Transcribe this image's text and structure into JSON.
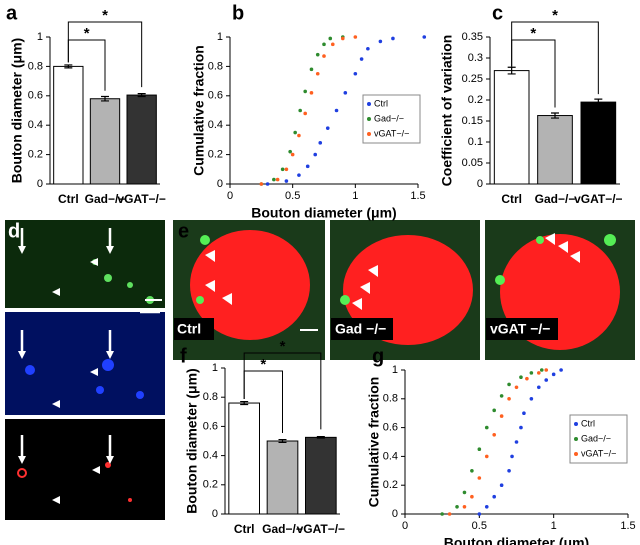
{
  "panel_labels": [
    "a",
    "b",
    "c",
    "d",
    "e",
    "f",
    "g"
  ],
  "image_labels": [
    "Ctrl",
    "Gad −/−",
    "vGAT −/−"
  ],
  "chart_data": [
    {
      "type": "bar",
      "ylabel": "Bouton diameter (μm)",
      "categories": [
        "Ctrl",
        "Gad−/−",
        "vGAT−/−"
      ],
      "values": [
        0.8,
        0.58,
        0.605
      ],
      "errors": [
        0.01,
        0.015,
        0.01
      ],
      "colors": [
        "#ffffff",
        "#b3b3b3",
        "#333333"
      ],
      "ylim": [
        0,
        1
      ],
      "yticks": [
        0,
        0.2,
        0.4,
        0.6,
        0.8,
        1
      ],
      "annotations": [
        "*",
        "*"
      ]
    },
    {
      "type": "line",
      "xlabel": "Bouton diameter (μm)",
      "ylabel": "Cumulative fraction",
      "xlim": [
        0,
        1.5
      ],
      "xticks": [
        0,
        0.5,
        1,
        1.5
      ],
      "ylim": [
        0,
        1
      ],
      "yticks": [
        0,
        0.2,
        0.4,
        0.6,
        0.8,
        1
      ],
      "series": [
        {
          "name": "Ctrl",
          "color": "#1f3fe0",
          "x": [
            0.3,
            0.45,
            0.55,
            0.62,
            0.68,
            0.72,
            0.78,
            0.85,
            0.92,
            1.0,
            1.05,
            1.1,
            1.2,
            1.3,
            1.55
          ],
          "values": [
            0,
            0.02,
            0.06,
            0.12,
            0.2,
            0.28,
            0.38,
            0.5,
            0.62,
            0.75,
            0.85,
            0.92,
            0.97,
            0.99,
            1
          ]
        },
        {
          "name": "Gad−/−",
          "color": "#2e8b2e",
          "x": [
            0.25,
            0.35,
            0.42,
            0.48,
            0.52,
            0.56,
            0.6,
            0.65,
            0.7,
            0.75,
            0.8,
            0.9
          ],
          "values": [
            0,
            0.03,
            0.1,
            0.22,
            0.35,
            0.5,
            0.63,
            0.78,
            0.88,
            0.95,
            0.99,
            1
          ]
        },
        {
          "name": "vGAT−/−",
          "color": "#ff6020",
          "x": [
            0.25,
            0.38,
            0.45,
            0.5,
            0.55,
            0.6,
            0.65,
            0.7,
            0.75,
            0.82,
            0.9,
            1.0
          ],
          "values": [
            0,
            0.03,
            0.1,
            0.2,
            0.33,
            0.48,
            0.62,
            0.75,
            0.87,
            0.95,
            0.99,
            1
          ]
        }
      ]
    },
    {
      "type": "bar",
      "ylabel": "Coefficient of variation",
      "categories": [
        "Ctrl",
        "Gad−/−",
        "vGAT−/−"
      ],
      "values": [
        0.27,
        0.163,
        0.195
      ],
      "errors": [
        0.008,
        0.006,
        0.007
      ],
      "colors": [
        "#ffffff",
        "#b3b3b3",
        "#000000"
      ],
      "ylim": [
        0,
        0.35
      ],
      "yticks": [
        0,
        0.05,
        0.1,
        0.15,
        0.2,
        0.25,
        0.3,
        0.35
      ],
      "annotations": [
        "*",
        "*"
      ]
    },
    {
      "type": "bar",
      "ylabel": "Bouton diameter (μm)",
      "categories": [
        "Ctrl",
        "Gad−/−",
        "vGAT−/−"
      ],
      "values": [
        0.76,
        0.5,
        0.525
      ],
      "errors": [
        0.01,
        0.01,
        0.005
      ],
      "colors": [
        "#ffffff",
        "#b3b3b3",
        "#333333"
      ],
      "ylim": [
        0,
        1
      ],
      "yticks": [
        0,
        0.2,
        0.4,
        0.6,
        0.8,
        1
      ],
      "annotations": [
        "*",
        "*"
      ]
    },
    {
      "type": "line",
      "xlabel": "Bouton diameter (μm)",
      "ylabel": "Cumulative fraction",
      "xlim": [
        0,
        1.5
      ],
      "xticks": [
        0,
        0.5,
        1,
        1.5
      ],
      "ylim": [
        0,
        1
      ],
      "yticks": [
        0,
        0.2,
        0.4,
        0.6,
        0.8,
        1
      ],
      "series": [
        {
          "name": "Ctrl",
          "color": "#1f3fe0",
          "x": [
            0.5,
            0.55,
            0.6,
            0.65,
            0.7,
            0.72,
            0.75,
            0.78,
            0.8,
            0.85,
            0.9,
            0.95,
            1.0,
            1.05
          ],
          "values": [
            0,
            0.05,
            0.12,
            0.2,
            0.3,
            0.4,
            0.5,
            0.6,
            0.7,
            0.8,
            0.88,
            0.93,
            0.97,
            1
          ]
        },
        {
          "name": "Gad−/−",
          "color": "#2e8b2e",
          "x": [
            0.25,
            0.35,
            0.4,
            0.45,
            0.5,
            0.55,
            0.6,
            0.65,
            0.7,
            0.78,
            0.85,
            0.92
          ],
          "values": [
            0,
            0.05,
            0.15,
            0.3,
            0.45,
            0.6,
            0.72,
            0.82,
            0.9,
            0.95,
            0.98,
            1
          ]
        },
        {
          "name": "vGAT−/−",
          "color": "#ff6020",
          "x": [
            0.3,
            0.4,
            0.45,
            0.5,
            0.55,
            0.6,
            0.65,
            0.7,
            0.75,
            0.82,
            0.9,
            0.95
          ],
          "values": [
            0,
            0.05,
            0.12,
            0.25,
            0.4,
            0.55,
            0.68,
            0.8,
            0.88,
            0.94,
            0.98,
            1
          ]
        }
      ]
    }
  ]
}
